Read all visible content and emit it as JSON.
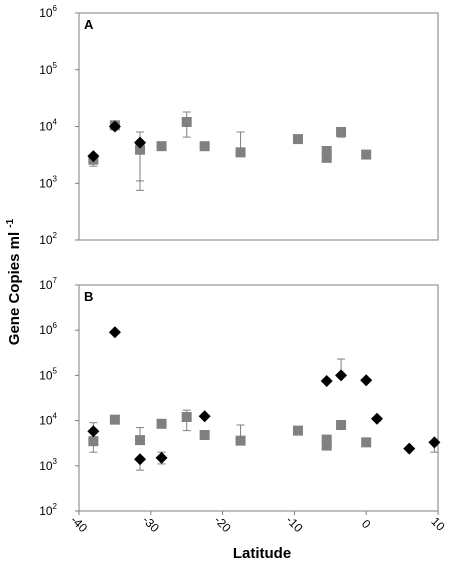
{
  "colors": {
    "square_series": "#808080",
    "diamond_series": "#000000",
    "error_bar": "#808080",
    "frame": "#7f7f7f"
  },
  "ylabel": "Gene Copies ml-1",
  "xlabel": "Latitude",
  "chart_data": [
    {
      "type": "scatter",
      "panel": "A",
      "yscale": "log",
      "ylim": [
        100,
        1000000
      ],
      "y_ticks": [
        {
          "base": "10",
          "exp": "2"
        },
        {
          "base": "10",
          "exp": "3"
        },
        {
          "base": "10",
          "exp": "4"
        },
        {
          "base": "10",
          "exp": "5"
        },
        {
          "base": "10",
          "exp": "6"
        }
      ],
      "xlim": [
        -40,
        10
      ],
      "series": [
        {
          "marker": "square",
          "points": [
            {
              "x": -38,
              "y": 2600,
              "err_low": 2000,
              "err_high": 3200
            },
            {
              "x": -35,
              "y": 10500
            },
            {
              "x": -31.5,
              "y": 3900,
              "err_low": 1100,
              "err_high": 8000
            },
            {
              "x": -28.5,
              "y": 4500
            },
            {
              "x": -25,
              "y": 12000,
              "err_low": 6500,
              "err_high": 18000
            },
            {
              "x": -22.5,
              "y": 4500
            },
            {
              "x": -17.5,
              "y": 3500,
              "err_low": 3200,
              "err_high": 8000
            },
            {
              "x": -9.5,
              "y": 6000
            },
            {
              "x": -5.5,
              "y": 2800
            },
            {
              "x": -5.5,
              "y": 3700
            },
            {
              "x": -3.5,
              "y": 8000,
              "err_low": 6500,
              "err_high": 9500
            },
            {
              "x": 0,
              "y": 3200
            }
          ]
        },
        {
          "marker": "diamond",
          "points": [
            {
              "x": -38,
              "y": 3000
            },
            {
              "x": -35,
              "y": 10000
            },
            {
              "x": -31.5,
              "y": 5200,
              "err_low": 750,
              "err_high": 5200
            }
          ]
        }
      ]
    },
    {
      "type": "scatter",
      "panel": "B",
      "yscale": "log",
      "ylim": [
        100,
        10000000
      ],
      "y_ticks": [
        {
          "base": "10",
          "exp": "2"
        },
        {
          "base": "10",
          "exp": "3"
        },
        {
          "base": "10",
          "exp": "4"
        },
        {
          "base": "10",
          "exp": "5"
        },
        {
          "base": "10",
          "exp": "6"
        },
        {
          "base": "10",
          "exp": "7"
        }
      ],
      "xlim": [
        -40,
        10
      ],
      "x_ticks": [
        "-40",
        "-30",
        "-20",
        "-10",
        "0",
        "10"
      ],
      "series": [
        {
          "marker": "square",
          "points": [
            {
              "x": -38,
              "y": 3500,
              "err_low": 2000,
              "err_high": 9000
            },
            {
              "x": -35,
              "y": 10500
            },
            {
              "x": -31.5,
              "y": 3700,
              "err_low": 3300,
              "err_high": 7000
            },
            {
              "x": -28.5,
              "y": 8500
            },
            {
              "x": -25,
              "y": 12000,
              "err_low": 6000,
              "err_high": 17000
            },
            {
              "x": -22.5,
              "y": 4800
            },
            {
              "x": -17.5,
              "y": 3600,
              "err_low": 3300,
              "err_high": 8000
            },
            {
              "x": -9.5,
              "y": 6000
            },
            {
              "x": -5.5,
              "y": 2800
            },
            {
              "x": -5.5,
              "y": 3800
            },
            {
              "x": -3.5,
              "y": 8000
            },
            {
              "x": 0,
              "y": 3300
            }
          ]
        },
        {
          "marker": "diamond",
          "points": [
            {
              "x": -38,
              "y": 5800
            },
            {
              "x": -35,
              "y": 900000
            },
            {
              "x": -31.5,
              "y": 1400,
              "err_low": 800,
              "err_high": 1400
            },
            {
              "x": -28.5,
              "y": 1500,
              "err_low": 1100,
              "err_high": 2000
            },
            {
              "x": -22.5,
              "y": 12500
            },
            {
              "x": -5.5,
              "y": 75000
            },
            {
              "x": -3.5,
              "y": 100000,
              "err_low": 100000,
              "err_high": 230000
            },
            {
              "x": 0,
              "y": 78000
            },
            {
              "x": 1.5,
              "y": 11000
            },
            {
              "x": 6,
              "y": 2400
            },
            {
              "x": 9.5,
              "y": 3300,
              "err_low": 2000,
              "err_high": 3300
            }
          ]
        }
      ]
    }
  ]
}
